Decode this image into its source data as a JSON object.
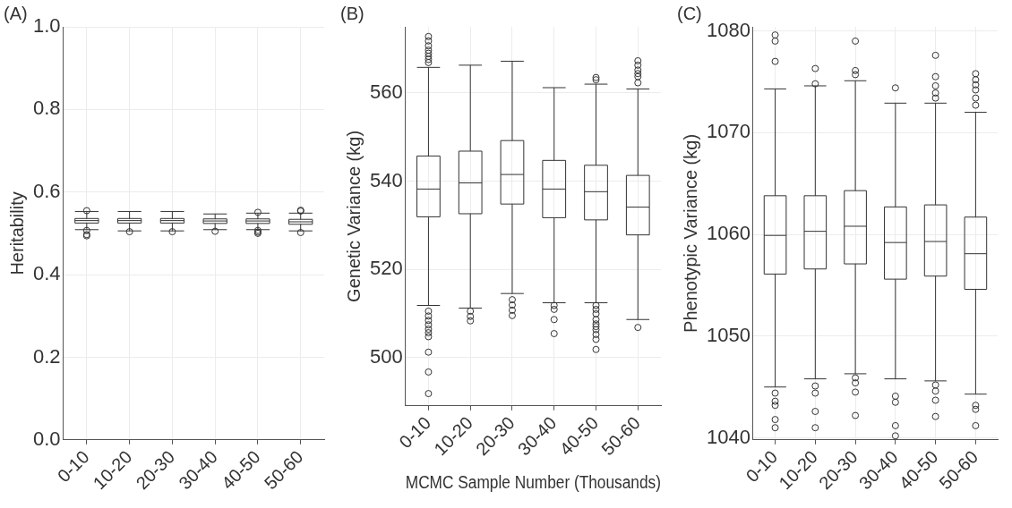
{
  "chart_data": [
    {
      "type": "box",
      "title": "(A)",
      "ylabel": "Heritability",
      "categories": [
        "0-10",
        "10-20",
        "20-30",
        "30-40",
        "40-50",
        "50-60"
      ],
      "color": "#333333",
      "marker": "circle",
      "grid": true,
      "ylim": [
        0,
        1
      ],
      "yticks": [
        {
          "value": 0,
          "label": "0.0"
        },
        {
          "value": 0.2,
          "label": "0.2"
        },
        {
          "value": 0.4,
          "label": "0.4"
        },
        {
          "value": 0.6,
          "label": "0.6"
        },
        {
          "value": 0.8,
          "label": "0.8"
        },
        {
          "value": 1,
          "label": "1.0"
        }
      ],
      "boxes": [
        {
          "low": 0.509,
          "q1": 0.525,
          "median": 0.531,
          "q3": 0.536,
          "high": 0.553,
          "outliers": [
            0.555,
            0.507,
            0.497,
            0.494
          ]
        },
        {
          "low": 0.506,
          "q1": 0.525,
          "median": 0.531,
          "q3": 0.536,
          "high": 0.553,
          "outliers": [
            0.504
          ]
        },
        {
          "low": 0.506,
          "q1": 0.525,
          "median": 0.531,
          "q3": 0.536,
          "high": 0.553,
          "outliers": [
            0.504
          ]
        },
        {
          "low": 0.509,
          "q1": 0.524,
          "median": 0.53,
          "q3": 0.535,
          "high": 0.547,
          "outliers": [
            0.505
          ]
        },
        {
          "low": 0.509,
          "q1": 0.524,
          "median": 0.53,
          "q3": 0.535,
          "high": 0.549,
          "outliers": [
            0.551,
            0.507,
            0.503,
            0.5
          ]
        },
        {
          "low": 0.506,
          "q1": 0.522,
          "median": 0.528,
          "q3": 0.534,
          "high": 0.549,
          "outliers": [
            0.556,
            0.554,
            0.502
          ]
        }
      ]
    },
    {
      "type": "box",
      "title": "(B)",
      "ylabel": "Genetic Variance (kg)",
      "xlabel": "MCMC Sample Number (Thousands)",
      "categories": [
        "0-10",
        "10-20",
        "20-30",
        "30-40",
        "40-50",
        "50-60"
      ],
      "color": "#333333",
      "marker": "circle",
      "grid": true,
      "ylim": [
        489,
        575
      ],
      "yticks": [
        500,
        520,
        540,
        560
      ],
      "boxes": [
        {
          "low": 511.8,
          "q1": 531.9,
          "median": 538.2,
          "q3": 545.7,
          "high": 565.8,
          "outliers": [
            572.8,
            571.8,
            570.7,
            569.7,
            569,
            568.3,
            567.6,
            566.9,
            510.5,
            509.4,
            508.4,
            507.4,
            506.4,
            505.6,
            504.7,
            501.2,
            496.7,
            491.8
          ]
        },
        {
          "low": 511.2,
          "q1": 532.6,
          "median": 539.6,
          "q3": 546.8,
          "high": 566.3,
          "outliers": [
            510.5,
            509.3,
            508.3
          ]
        },
        {
          "low": 514.5,
          "q1": 534.8,
          "median": 541.5,
          "q3": 549.2,
          "high": 567.2,
          "outliers": [
            513.1,
            511.9,
            510.7,
            509.5
          ]
        },
        {
          "low": 512.4,
          "q1": 531.7,
          "median": 538.2,
          "q3": 544.7,
          "high": 561.2,
          "outliers": [
            511.8,
            510.9,
            508.6,
            505.4
          ]
        },
        {
          "low": 512.4,
          "q1": 531.2,
          "median": 537.6,
          "q3": 543.6,
          "high": 562,
          "outliers": [
            563.5,
            563,
            511.8,
            510.9,
            509.9,
            508.6,
            507.6,
            507,
            506.3,
            505.2,
            504.1,
            501.8
          ]
        },
        {
          "low": 508.6,
          "q1": 527.8,
          "median": 534.1,
          "q3": 541.3,
          "high": 560.9,
          "outliers": [
            567.3,
            566.3,
            565.2,
            564.4,
            563.7,
            562.3,
            506.8
          ]
        }
      ]
    },
    {
      "type": "box",
      "title": "(C)",
      "ylabel": "Phenotypic Variance (kg)",
      "categories": [
        "0-10",
        "10-20",
        "20-30",
        "30-40",
        "40-50",
        "50-60"
      ],
      "color": "#333333",
      "marker": "circle",
      "grid": true,
      "ylim": [
        1039.8,
        1080.4
      ],
      "yticks": [
        1040,
        1050,
        1060,
        1070,
        1080
      ],
      "boxes": [
        {
          "low": 1045,
          "q1": 1056.1,
          "median": 1059.9,
          "q3": 1063.8,
          "high": 1074.3,
          "outliers": [
            1079.6,
            1079,
            1077,
            1044.4,
            1043.6,
            1043.2,
            1041.8,
            1041
          ]
        },
        {
          "low": 1045.8,
          "q1": 1056.6,
          "median": 1060.3,
          "q3": 1063.8,
          "high": 1074.6,
          "outliers": [
            1076.3,
            1074.8,
            1045.1,
            1044.4,
            1042.6,
            1041
          ]
        },
        {
          "low": 1046.3,
          "q1": 1057.1,
          "median": 1060.8,
          "q3": 1064.3,
          "high": 1075.1,
          "outliers": [
            1079,
            1076.1,
            1075.7,
            1045.9,
            1045.4,
            1044.5,
            1042.2
          ]
        },
        {
          "low": 1045.8,
          "q1": 1055.6,
          "median": 1059.2,
          "q3": 1062.7,
          "high": 1072.9,
          "outliers": [
            1074.4,
            1044.1,
            1043.5,
            1041.2,
            1040.2
          ]
        },
        {
          "low": 1045.6,
          "q1": 1055.9,
          "median": 1059.3,
          "q3": 1062.9,
          "high": 1072.9,
          "outliers": [
            1077.6,
            1075.5,
            1074.6,
            1073.9,
            1073.4,
            1045.2,
            1044.6,
            1043.7,
            1042.1
          ]
        },
        {
          "low": 1044.3,
          "q1": 1054.6,
          "median": 1058.1,
          "q3": 1061.7,
          "high": 1072,
          "outliers": [
            1075.8,
            1075.2,
            1074.7,
            1074.2,
            1073.4,
            1072.7,
            1043.2,
            1042.8,
            1041.2
          ]
        }
      ]
    }
  ]
}
